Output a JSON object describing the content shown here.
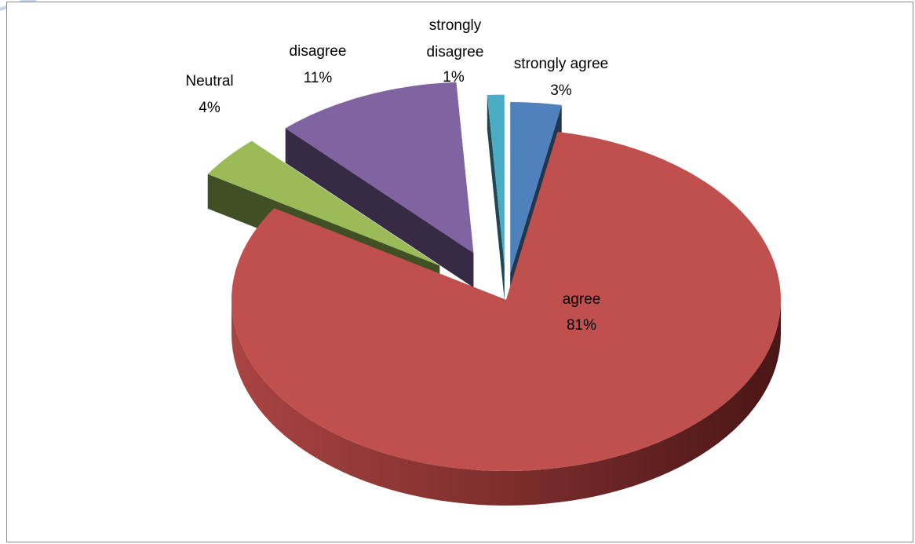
{
  "chart_data": {
    "type": "pie",
    "title": "",
    "style": "3d-exploded",
    "slices": [
      {
        "label": "strongly agree",
        "percent_label": "3%",
        "value": 3,
        "color": "#4f81bd"
      },
      {
        "label": "agree",
        "percent_label": "81%",
        "value": 81,
        "color": "#c0504d"
      },
      {
        "label": "Neutral",
        "percent_label": "4%",
        "value": 4,
        "color": "#9bbb59"
      },
      {
        "label": "disagree",
        "percent_label": "11%",
        "value": 11,
        "color": "#8064a2"
      },
      {
        "label": "strongly disagree",
        "percent_label": "1%",
        "value": 1,
        "color": "#4bacc6"
      }
    ]
  }
}
